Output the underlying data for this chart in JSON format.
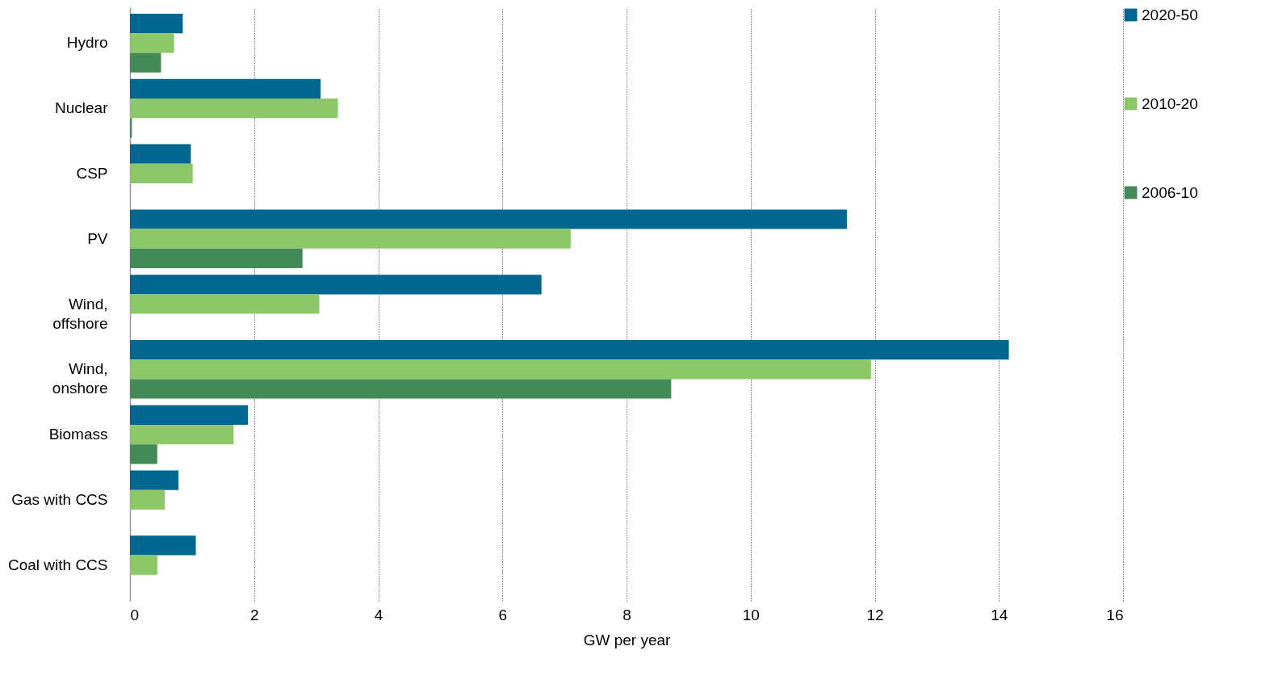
{
  "chart_data": {
    "type": "bar",
    "orientation": "horizontal",
    "xlabel": "GW per year",
    "categories": [
      "Hydro",
      "Nuclear",
      "CSP",
      "PV",
      "Wind,\noffshore",
      "Wind,\nonshore",
      "Biomass",
      "Gas with CCS",
      "Coal with CCS"
    ],
    "series": [
      {
        "name": "2020-50",
        "color": "#006890",
        "values": [
          0.85,
          3.07,
          0.98,
          11.55,
          6.63,
          14.16,
          1.9,
          0.78,
          1.06
        ]
      },
      {
        "name": "2010-20",
        "color": "#8cc868",
        "values": [
          0.71,
          3.35,
          1.01,
          7.1,
          3.05,
          11.94,
          1.67,
          0.56,
          0.44
        ]
      },
      {
        "name": "2006-10",
        "color": "#438a57",
        "values": [
          0.5,
          0.03,
          null,
          2.78,
          null,
          8.72,
          0.44,
          null,
          null
        ]
      }
    ],
    "xlim": [
      0,
      16
    ],
    "xticks": [
      0,
      2,
      4,
      6,
      8,
      10,
      12,
      14,
      16
    ],
    "grid": "x",
    "legend": "right"
  }
}
